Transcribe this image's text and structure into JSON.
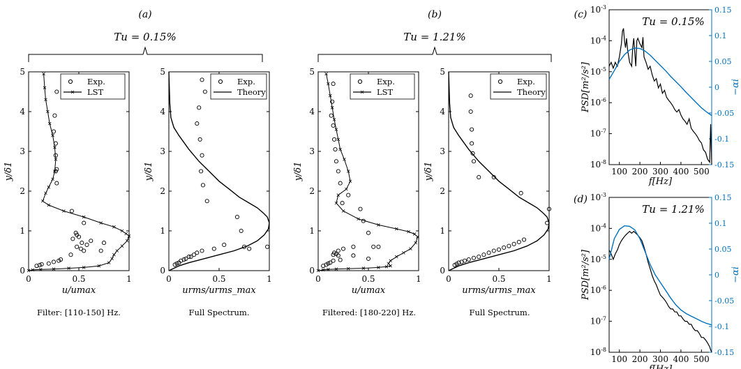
{
  "panels": {
    "a": "(a)",
    "b": "(b)",
    "c": "(c)",
    "d": "(d)"
  },
  "tu": {
    "low": "Tu = 0.15%",
    "high": "Tu = 1.21%"
  },
  "captions": {
    "a1": "Filter: [110-150] Hz.",
    "a2": "Full Spectrum.",
    "b1": "Filtered: [180-220] Hz.",
    "b2": "Full Spectrum."
  },
  "legend": {
    "exp": "Exp.",
    "lst": "LST",
    "theory": "Theory"
  },
  "axes": {
    "ylabel_profile": "y/δ1",
    "xlabel_u": "u/umax",
    "xlabel_urms": "urms/urms_max",
    "ylabel_psd": "PSD[m²/s²]",
    "xlabel_f": "f[Hz]",
    "ylabel_right": "−αi"
  },
  "colors": {
    "spectrum": "#000000",
    "growth": "#0072BD"
  },
  "chart_data": [
    {
      "id": "a1",
      "type": "scatter",
      "xlim": [
        0,
        1
      ],
      "ylim": [
        0,
        5
      ],
      "xticks": [
        "0",
        "0.5",
        "1"
      ],
      "yticks": [
        "0",
        "1",
        "2",
        "3",
        "4",
        "5"
      ],
      "series": [
        {
          "name": "Exp.",
          "marker": "circle",
          "x": [
            0.28,
            0.26,
            0.25,
            0.27,
            0.27,
            0.28,
            0.27,
            0.28,
            0.43,
            0.55,
            0.47,
            0.48,
            0.5,
            0.44,
            0.75,
            0.62,
            0.72,
            0.53,
            0.58,
            0.48,
            0.52,
            0.55,
            0.42,
            0.32,
            0.3,
            0.25,
            0.2,
            0.13,
            0.11,
            0.08
          ],
          "y": [
            4.5,
            3.9,
            3.5,
            3.2,
            2.9,
            2.55,
            2.5,
            2.2,
            1.5,
            1.2,
            0.95,
            0.9,
            0.85,
            0.8,
            0.7,
            0.75,
            0.5,
            0.7,
            0.65,
            0.6,
            0.55,
            0.5,
            0.4,
            0.28,
            0.25,
            0.22,
            0.18,
            0.16,
            0.14,
            0.12
          ]
        },
        {
          "name": "LST",
          "marker": "x",
          "x": [
            0.15,
            0.16,
            0.17,
            0.19,
            0.21,
            0.24,
            0.26,
            0.27,
            0.26,
            0.24,
            0.2,
            0.17,
            0.14,
            0.2,
            0.35,
            0.55,
            0.72,
            0.85,
            0.93,
            0.97,
            1,
            0.98,
            0.93,
            0.88,
            0.85,
            0.83,
            0.8,
            0.7,
            0.55,
            0.4,
            0.25,
            0.12,
            0.04,
            0
          ],
          "y": [
            4.95,
            4.6,
            4.3,
            4,
            3.7,
            3.4,
            3.1,
            2.8,
            2.5,
            2.3,
            2.1,
            1.95,
            1.75,
            1.65,
            1.5,
            1.35,
            1.2,
            1.1,
            1,
            0.93,
            0.87,
            0.75,
            0.62,
            0.5,
            0.4,
            0.3,
            0.2,
            0.12,
            0.08,
            0.06,
            0.04,
            0.03,
            0.02,
            0
          ]
        }
      ]
    },
    {
      "id": "a2",
      "type": "scatter",
      "xlim": [
        0,
        1
      ],
      "ylim": [
        0,
        5
      ],
      "xticks": [
        "0",
        "0.5",
        "1"
      ],
      "yticks": [
        "0",
        "1",
        "2",
        "3",
        "4",
        "5"
      ],
      "series": [
        {
          "name": "Exp.",
          "marker": "circle",
          "x": [
            0.33,
            0.36,
            0.3,
            0.28,
            0.31,
            0.33,
            0.32,
            0.34,
            0.38,
            0.68,
            0.72,
            0.75,
            0.8,
            0.98,
            0.55,
            0.45,
            0.33,
            0.28,
            0.25,
            0.22,
            0.2,
            0.17,
            0.15,
            0.12,
            0.1,
            0.08,
            0.06
          ],
          "y": [
            4.8,
            4.5,
            4.1,
            3.7,
            3.3,
            2.9,
            2.5,
            2.15,
            1.75,
            1.35,
            1,
            0.6,
            0.55,
            0.6,
            0.65,
            0.55,
            0.5,
            0.45,
            0.4,
            0.35,
            0.35,
            0.3,
            0.28,
            0.25,
            0.2,
            0.18,
            0.15
          ]
        },
        {
          "name": "Theory",
          "marker": "line",
          "x": [
            0,
            0.01,
            0.02,
            0.05,
            0.1,
            0.2,
            0.3,
            0.4,
            0.5,
            0.6,
            0.7,
            0.8,
            0.88,
            0.94,
            0.98,
            1,
            0.99,
            0.95,
            0.88,
            0.78,
            0.65,
            0.5,
            0.35,
            0.2,
            0.1,
            0.05,
            0
          ],
          "y": [
            5,
            4.2,
            3.85,
            3.6,
            3.4,
            3.05,
            2.75,
            2.5,
            2.25,
            2.05,
            1.85,
            1.7,
            1.58,
            1.45,
            1.35,
            1.2,
            1.05,
            0.9,
            0.75,
            0.62,
            0.5,
            0.4,
            0.3,
            0.2,
            0.12,
            0.06,
            0
          ]
        }
      ]
    },
    {
      "id": "b1",
      "type": "scatter",
      "xlim": [
        0,
        1
      ],
      "ylim": [
        0,
        5
      ],
      "xticks": [
        "0",
        "0.5",
        "1"
      ],
      "yticks": [
        "0",
        "1",
        "2",
        "3",
        "4",
        "5"
      ],
      "series": [
        {
          "name": "Exp.",
          "marker": "circle",
          "x": [
            0.15,
            0.14,
            0.13,
            0.15,
            0.16,
            0.17,
            0.18,
            0.2,
            0.22,
            0.24,
            0.3,
            0.42,
            0.45,
            0.5,
            0.35,
            0.25,
            0.2,
            0.16,
            0.18,
            0.15,
            0.2,
            0.35,
            0.55,
            0.6,
            0.5,
            0.22,
            0.15,
            0.12,
            0.1,
            0.08,
            0.05
          ],
          "y": [
            4.7,
            4.25,
            3.9,
            3.65,
            3.3,
            3.05,
            2.75,
            2.5,
            2.2,
            1.7,
            1.9,
            1.55,
            1.25,
            0.95,
            0.6,
            0.55,
            0.5,
            0.45,
            0.42,
            0.4,
            0.38,
            0.38,
            0.6,
            0.6,
            0.3,
            0.27,
            0.25,
            0.2,
            0.18,
            0.15,
            0.12
          ]
        },
        {
          "name": "LST",
          "marker": "x",
          "x": [
            0.08,
            0.1,
            0.12,
            0.14,
            0.16,
            0.18,
            0.2,
            0.22,
            0.26,
            0.3,
            0.32,
            0.28,
            0.2,
            0.18,
            0.25,
            0.4,
            0.6,
            0.78,
            0.9,
            0.96,
            0.99,
            0.97,
            0.92,
            0.85,
            0.78,
            0.72,
            0.7,
            0.72,
            0.68,
            0.6,
            0.45,
            0.3,
            0.18,
            0.1,
            0.05,
            0
          ],
          "y": [
            4.95,
            4.7,
            4.4,
            4.1,
            3.8,
            3.55,
            3.3,
            3.05,
            2.8,
            2.5,
            2.25,
            2.05,
            1.9,
            1.7,
            1.5,
            1.3,
            1.15,
            1.05,
            0.98,
            0.92,
            0.85,
            0.7,
            0.55,
            0.45,
            0.35,
            0.25,
            0.18,
            0.12,
            0.1,
            0.08,
            0.06,
            0.05,
            0.04,
            0.03,
            0.02,
            0
          ]
        }
      ]
    },
    {
      "id": "b2",
      "type": "scatter",
      "xlim": [
        0,
        1
      ],
      "ylim": [
        0,
        5
      ],
      "xticks": [
        "0",
        "0.5",
        "1"
      ],
      "yticks": [
        "0",
        "1",
        "2",
        "3",
        "4",
        "5"
      ],
      "series": [
        {
          "name": "Exp.",
          "marker": "circle",
          "x": [
            0.22,
            0.22,
            0.23,
            0.23,
            0.24,
            0.25,
            0.3,
            0.45,
            0.72,
            1,
            0.98,
            0.75,
            0.7,
            0.65,
            0.6,
            0.55,
            0.5,
            0.45,
            0.4,
            0.35,
            0.3,
            0.25,
            0.2,
            0.16,
            0.13,
            0.1,
            0.08,
            0.06
          ],
          "y": [
            4.4,
            4,
            3.55,
            3.2,
            2.95,
            2.75,
            2.35,
            2.35,
            1.95,
            1.55,
            1.2,
            0.78,
            0.72,
            0.67,
            0.62,
            0.58,
            0.53,
            0.5,
            0.45,
            0.4,
            0.35,
            0.32,
            0.28,
            0.25,
            0.22,
            0.2,
            0.17,
            0.14
          ]
        },
        {
          "name": "Theory",
          "marker": "line",
          "x": [
            0,
            0.01,
            0.02,
            0.05,
            0.1,
            0.2,
            0.3,
            0.4,
            0.5,
            0.6,
            0.7,
            0.8,
            0.88,
            0.94,
            0.98,
            1,
            0.99,
            0.95,
            0.88,
            0.78,
            0.65,
            0.5,
            0.35,
            0.2,
            0.1,
            0.05,
            0
          ],
          "y": [
            5,
            4.2,
            3.85,
            3.6,
            3.4,
            3.05,
            2.75,
            2.5,
            2.25,
            2.05,
            1.85,
            1.7,
            1.58,
            1.45,
            1.35,
            1.2,
            1.05,
            0.9,
            0.75,
            0.62,
            0.5,
            0.4,
            0.3,
            0.2,
            0.12,
            0.06,
            0
          ]
        }
      ]
    },
    {
      "id": "c",
      "type": "line",
      "xlim": [
        50,
        550
      ],
      "ylim_log": [
        -8,
        -3
      ],
      "y2lim": [
        -0.15,
        0.15
      ],
      "xticks": [
        "100",
        "200",
        "300",
        "400",
        "500"
      ],
      "yticks_exp": [
        -8,
        -7,
        -6,
        -5,
        -4,
        -3
      ],
      "y2ticks": [
        "-0.15",
        "-0.1",
        "-0.05",
        "0",
        "0.05",
        "0.1",
        "0.15"
      ],
      "series": [
        {
          "name": "PSD",
          "x": [
            50,
            60,
            70,
            80,
            90,
            100,
            110,
            115,
            120,
            125,
            130,
            135,
            140,
            150,
            160,
            165,
            170,
            175,
            180,
            185,
            190,
            200,
            210,
            215,
            220,
            230,
            240,
            250,
            260,
            270,
            280,
            290,
            300,
            310,
            320,
            330,
            340,
            350,
            360,
            370,
            380,
            390,
            400,
            410,
            420,
            430,
            440,
            450,
            460,
            470,
            480,
            490,
            500,
            510,
            520,
            530,
            540,
            545,
            550
          ],
          "y": [
            1.5e-05,
            2e-05,
            1.3e-05,
            2e-05,
            1.5e-05,
            3e-05,
            8e-05,
            0.0002,
            0.00025,
            0.0001,
            6e-05,
            0.00012,
            5e-05,
            2e-05,
            1.5e-05,
            6e-05,
            0.00012,
            4e-05,
            1.5e-05,
            0.0001,
            0.00012,
            8e-05,
            6e-05,
            0.00013,
            3e-05,
            2e-05,
            1.2e-05,
            1.5e-05,
            8e-06,
            5e-06,
            6e-06,
            3e-06,
            4e-06,
            2e-06,
            2.5e-06,
            1.5e-06,
            1.2e-06,
            1e-06,
            8e-07,
            6e-07,
            5e-07,
            6e-07,
            4e-07,
            3e-07,
            2.5e-07,
            2e-07,
            3e-07,
            1.5e-07,
            1.2e-07,
            1e-07,
            8e-08,
            6e-08,
            5e-08,
            3e-08,
            2.5e-08,
            1.5e-08,
            1.2e-08,
            2e-07,
            1e-08
          ]
        },
        {
          "name": "growth",
          "x": [
            50,
            75,
            100,
            125,
            150,
            175,
            200,
            225,
            250,
            275,
            300,
            325,
            350,
            375,
            400,
            425,
            450,
            475,
            500,
            525,
            550
          ],
          "y": [
            0.015,
            0.032,
            0.05,
            0.063,
            0.072,
            0.076,
            0.075,
            0.07,
            0.062,
            0.052,
            0.042,
            0.032,
            0.021,
            0.011,
            0.001,
            -0.01,
            -0.02,
            -0.03,
            -0.04,
            -0.048,
            -0.055
          ]
        }
      ]
    },
    {
      "id": "d",
      "type": "line",
      "xlim": [
        50,
        550
      ],
      "ylim_log": [
        -8,
        -3
      ],
      "y2lim": [
        -0.15,
        0.15
      ],
      "xticks": [
        "100",
        "200",
        "300",
        "400",
        "500"
      ],
      "yticks_exp": [
        -8,
        -7,
        -6,
        -5,
        -4,
        -3
      ],
      "y2ticks": [
        "-0.15",
        "-0.1",
        "-0.05",
        "0",
        "0.05",
        "0.1",
        "0.15"
      ],
      "series": [
        {
          "name": "PSD",
          "x": [
            50,
            60,
            70,
            80,
            90,
            100,
            110,
            120,
            130,
            140,
            150,
            160,
            170,
            180,
            190,
            200,
            210,
            220,
            230,
            240,
            250,
            260,
            270,
            280,
            290,
            300,
            310,
            320,
            330,
            340,
            350,
            360,
            370,
            380,
            390,
            400,
            410,
            420,
            430,
            440,
            450,
            460,
            470,
            480,
            490,
            500,
            510,
            520,
            530,
            540,
            545,
            550
          ],
          "y": [
            2e-05,
            1.5e-05,
            1e-05,
            1.5e-05,
            2e-05,
            3e-05,
            4e-05,
            5e-05,
            6e-05,
            7e-05,
            8e-05,
            7e-05,
            8e-05,
            7e-05,
            6e-05,
            5e-05,
            4e-05,
            2.5e-05,
            1.5e-05,
            8e-06,
            5e-06,
            3e-06,
            2e-06,
            1.5e-06,
            1e-06,
            7e-07,
            6e-07,
            5e-07,
            4e-07,
            3e-07,
            2.5e-07,
            2.5e-07,
            2e-07,
            2e-07,
            1.5e-07,
            1.5e-07,
            1.2e-07,
            1e-07,
            1e-07,
            8e-08,
            8e-08,
            6e-08,
            5e-08,
            5e-08,
            4e-08,
            3e-08,
            3e-08,
            2.5e-08,
            2e-08,
            1.5e-08,
            1.2e-08,
            1e-08
          ]
        },
        {
          "name": "growth",
          "x": [
            50,
            75,
            100,
            125,
            150,
            175,
            200,
            225,
            250,
            275,
            300,
            325,
            350,
            375,
            400,
            425,
            450,
            475,
            500,
            525,
            550
          ],
          "y": [
            0.03,
            0.07,
            0.088,
            0.095,
            0.094,
            0.087,
            0.07,
            0.045,
            0.02,
            0,
            -0.015,
            -0.03,
            -0.045,
            -0.058,
            -0.068,
            -0.075,
            -0.08,
            -0.085,
            -0.09,
            -0.094,
            -0.097
          ]
        }
      ]
    }
  ]
}
